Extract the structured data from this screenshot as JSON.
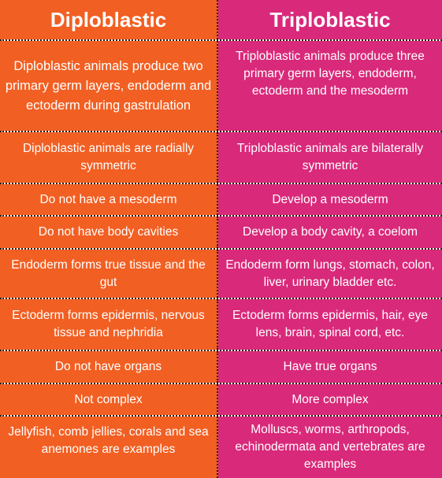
{
  "colors": {
    "left_bg": "#f25f22",
    "right_bg": "#d9297a",
    "text": "#ffffff",
    "divider": "#2a1a10"
  },
  "header": {
    "left": "Diploblastic",
    "right": "Triploblastic"
  },
  "rows": [
    {
      "left": "Diploblastic animals produce two primary germ layers, endoderm and ectoderm during gastrulation",
      "right": "Triploblastic animals produce three primary germ layers, endoderm, ectoderm and the mesoderm"
    },
    {
      "left": "Diploblastic animals are radially symmetric",
      "right": "Triploblastic animals are bilaterally symmetric"
    },
    {
      "left": "Do not have a mesoderm",
      "right": "Develop a mesoderm"
    },
    {
      "left": "Do not have body cavities",
      "right": "Develop a body cavity, a coelom"
    },
    {
      "left": "Endoderm forms true tissue and the gut",
      "right": "Endoderm form lungs, stomach, colon, liver, urinary bladder etc."
    },
    {
      "left": "Ectoderm forms epidermis, nervous tissue and nephridia",
      "right": "Ectoderm forms epidermis, hair, eye lens, brain, spinal cord, etc."
    },
    {
      "left": "Do not have organs",
      "right": "Have true organs"
    },
    {
      "left": "Not complex",
      "right": "More complex"
    },
    {
      "left": "Jellyfish, comb jellies, corals and sea anemones are examples",
      "right": "Molluscs, worms, arthropods, echinodermata and vertebrates are examples"
    }
  ]
}
